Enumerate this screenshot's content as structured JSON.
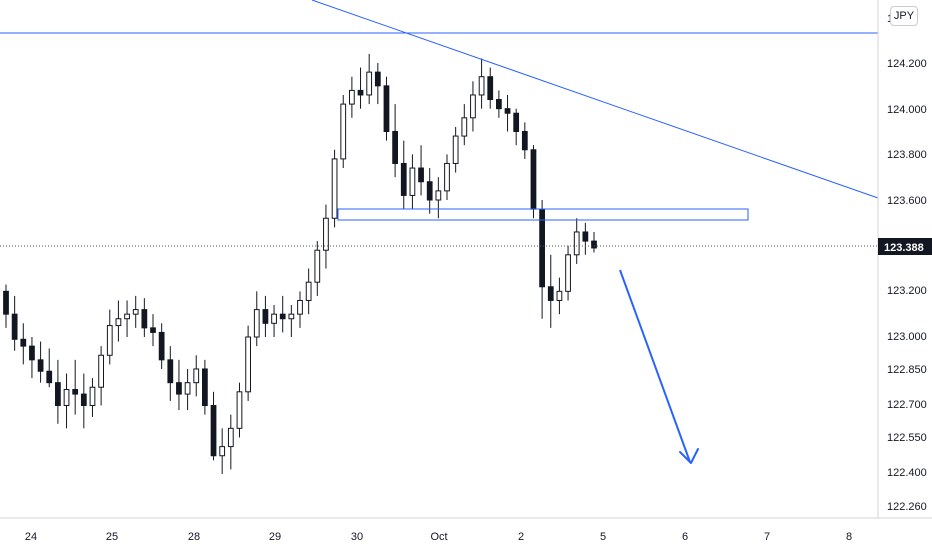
{
  "currency_label": "JPY",
  "price_top_label": "1  0",
  "current_price_label": "123.388",
  "chart_data": {
    "type": "candlestick",
    "title": "",
    "xlabel": "",
    "ylabel": "",
    "x_tick_labels": [
      "24",
      "25",
      "28",
      "29",
      "30",
      "Oct",
      "2",
      "5",
      "6",
      "7",
      "8"
    ],
    "y_tick_labels": [
      "124.200",
      "124.000",
      "123.800",
      "123.600",
      "123.200",
      "123.000",
      "122.850",
      "122.700",
      "122.550",
      "122.400",
      "122.260"
    ],
    "ylim": [
      122.24,
      124.42
    ],
    "current_price": 123.388,
    "horizontal_resistance": 124.33,
    "descending_trendline": {
      "from": [
        "29 late",
        124.52
      ],
      "to": [
        "8 end",
        123.59
      ]
    },
    "support_zone": {
      "top": 123.545,
      "bottom": 123.5,
      "from": "29 late",
      "to": "6 late"
    },
    "projection_arrow": {
      "from": [
        "5",
        123.32
      ],
      "to": [
        "6",
        122.42
      ]
    },
    "candles_ohlc": [
      [
        123.2,
        123.23,
        123.04,
        123.1
      ],
      [
        123.1,
        123.18,
        122.94,
        122.99
      ],
      [
        122.99,
        123.06,
        122.88,
        122.96
      ],
      [
        122.96,
        123.0,
        122.82,
        122.9
      ],
      [
        122.9,
        122.98,
        122.8,
        122.85
      ],
      [
        122.85,
        122.95,
        122.78,
        122.8
      ],
      [
        122.8,
        122.9,
        122.62,
        122.7
      ],
      [
        122.7,
        122.84,
        122.6,
        122.77
      ],
      [
        122.77,
        122.9,
        122.66,
        122.75
      ],
      [
        122.75,
        122.84,
        122.6,
        122.7
      ],
      [
        122.7,
        122.82,
        122.65,
        122.78
      ],
      [
        122.78,
        122.96,
        122.7,
        122.92
      ],
      [
        122.92,
        123.12,
        122.88,
        123.05
      ],
      [
        123.05,
        123.16,
        122.98,
        123.08
      ],
      [
        123.08,
        123.16,
        123.0,
        123.1
      ],
      [
        123.1,
        123.18,
        123.04,
        123.12
      ],
      [
        123.12,
        123.17,
        123.0,
        123.04
      ],
      [
        123.04,
        123.1,
        122.96,
        123.02
      ],
      [
        123.02,
        123.06,
        122.86,
        122.9
      ],
      [
        122.9,
        122.96,
        122.72,
        122.8
      ],
      [
        122.8,
        122.9,
        122.68,
        122.75
      ],
      [
        122.75,
        122.86,
        122.68,
        122.8
      ],
      [
        122.8,
        122.92,
        122.74,
        122.86
      ],
      [
        122.86,
        122.9,
        122.66,
        122.7
      ],
      [
        122.7,
        122.76,
        122.46,
        122.48
      ],
      [
        122.48,
        122.6,
        122.4,
        122.52
      ],
      [
        122.52,
        122.66,
        122.42,
        122.6
      ],
      [
        122.6,
        122.8,
        122.56,
        122.76
      ],
      [
        122.76,
        123.05,
        122.72,
        123.0
      ],
      [
        123.0,
        123.2,
        122.96,
        123.12
      ],
      [
        123.12,
        123.18,
        123.0,
        123.06
      ],
      [
        123.06,
        123.14,
        123.0,
        123.1
      ],
      [
        123.1,
        123.18,
        123.02,
        123.08
      ],
      [
        123.08,
        123.14,
        123.0,
        123.1
      ],
      [
        123.1,
        123.2,
        123.04,
        123.16
      ],
      [
        123.16,
        123.3,
        123.1,
        123.24
      ],
      [
        123.24,
        123.42,
        123.18,
        123.38
      ],
      [
        123.38,
        123.58,
        123.3,
        123.52
      ],
      [
        123.52,
        123.82,
        123.48,
        123.78
      ],
      [
        123.78,
        124.06,
        123.74,
        124.02
      ],
      [
        124.02,
        124.14,
        123.96,
        124.08
      ],
      [
        124.08,
        124.18,
        124.0,
        124.06
      ],
      [
        124.06,
        124.24,
        124.02,
        124.16
      ],
      [
        124.16,
        124.2,
        124.02,
        124.1
      ],
      [
        124.1,
        124.14,
        123.86,
        123.9
      ],
      [
        123.9,
        124.02,
        123.7,
        123.76
      ],
      [
        123.76,
        123.86,
        123.56,
        123.62
      ],
      [
        123.62,
        123.8,
        123.56,
        123.74
      ],
      [
        123.74,
        123.84,
        123.62,
        123.68
      ],
      [
        123.68,
        123.74,
        123.54,
        123.6
      ],
      [
        123.6,
        123.7,
        123.52,
        123.64
      ],
      [
        123.64,
        123.8,
        123.6,
        123.76
      ],
      [
        123.76,
        123.92,
        123.72,
        123.88
      ],
      [
        123.88,
        124.02,
        123.84,
        123.96
      ],
      [
        123.96,
        124.12,
        123.9,
        124.06
      ],
      [
        124.06,
        124.22,
        124.0,
        124.14
      ],
      [
        124.14,
        124.18,
        124.0,
        124.04
      ],
      [
        124.04,
        124.08,
        123.96,
        124.0
      ],
      [
        124.0,
        124.06,
        123.9,
        123.98
      ],
      [
        123.98,
        124.0,
        123.84,
        123.9
      ],
      [
        123.9,
        123.94,
        123.78,
        123.82
      ],
      [
        123.82,
        123.84,
        123.52,
        123.56
      ],
      [
        123.56,
        123.6,
        123.08,
        123.22
      ],
      [
        123.22,
        123.36,
        123.04,
        123.16
      ],
      [
        123.16,
        123.26,
        123.1,
        123.2
      ],
      [
        123.2,
        123.4,
        123.16,
        123.36
      ],
      [
        123.36,
        123.52,
        123.32,
        123.46
      ],
      [
        123.46,
        123.5,
        123.36,
        123.42
      ],
      [
        123.42,
        123.46,
        123.37,
        123.39
      ]
    ]
  }
}
